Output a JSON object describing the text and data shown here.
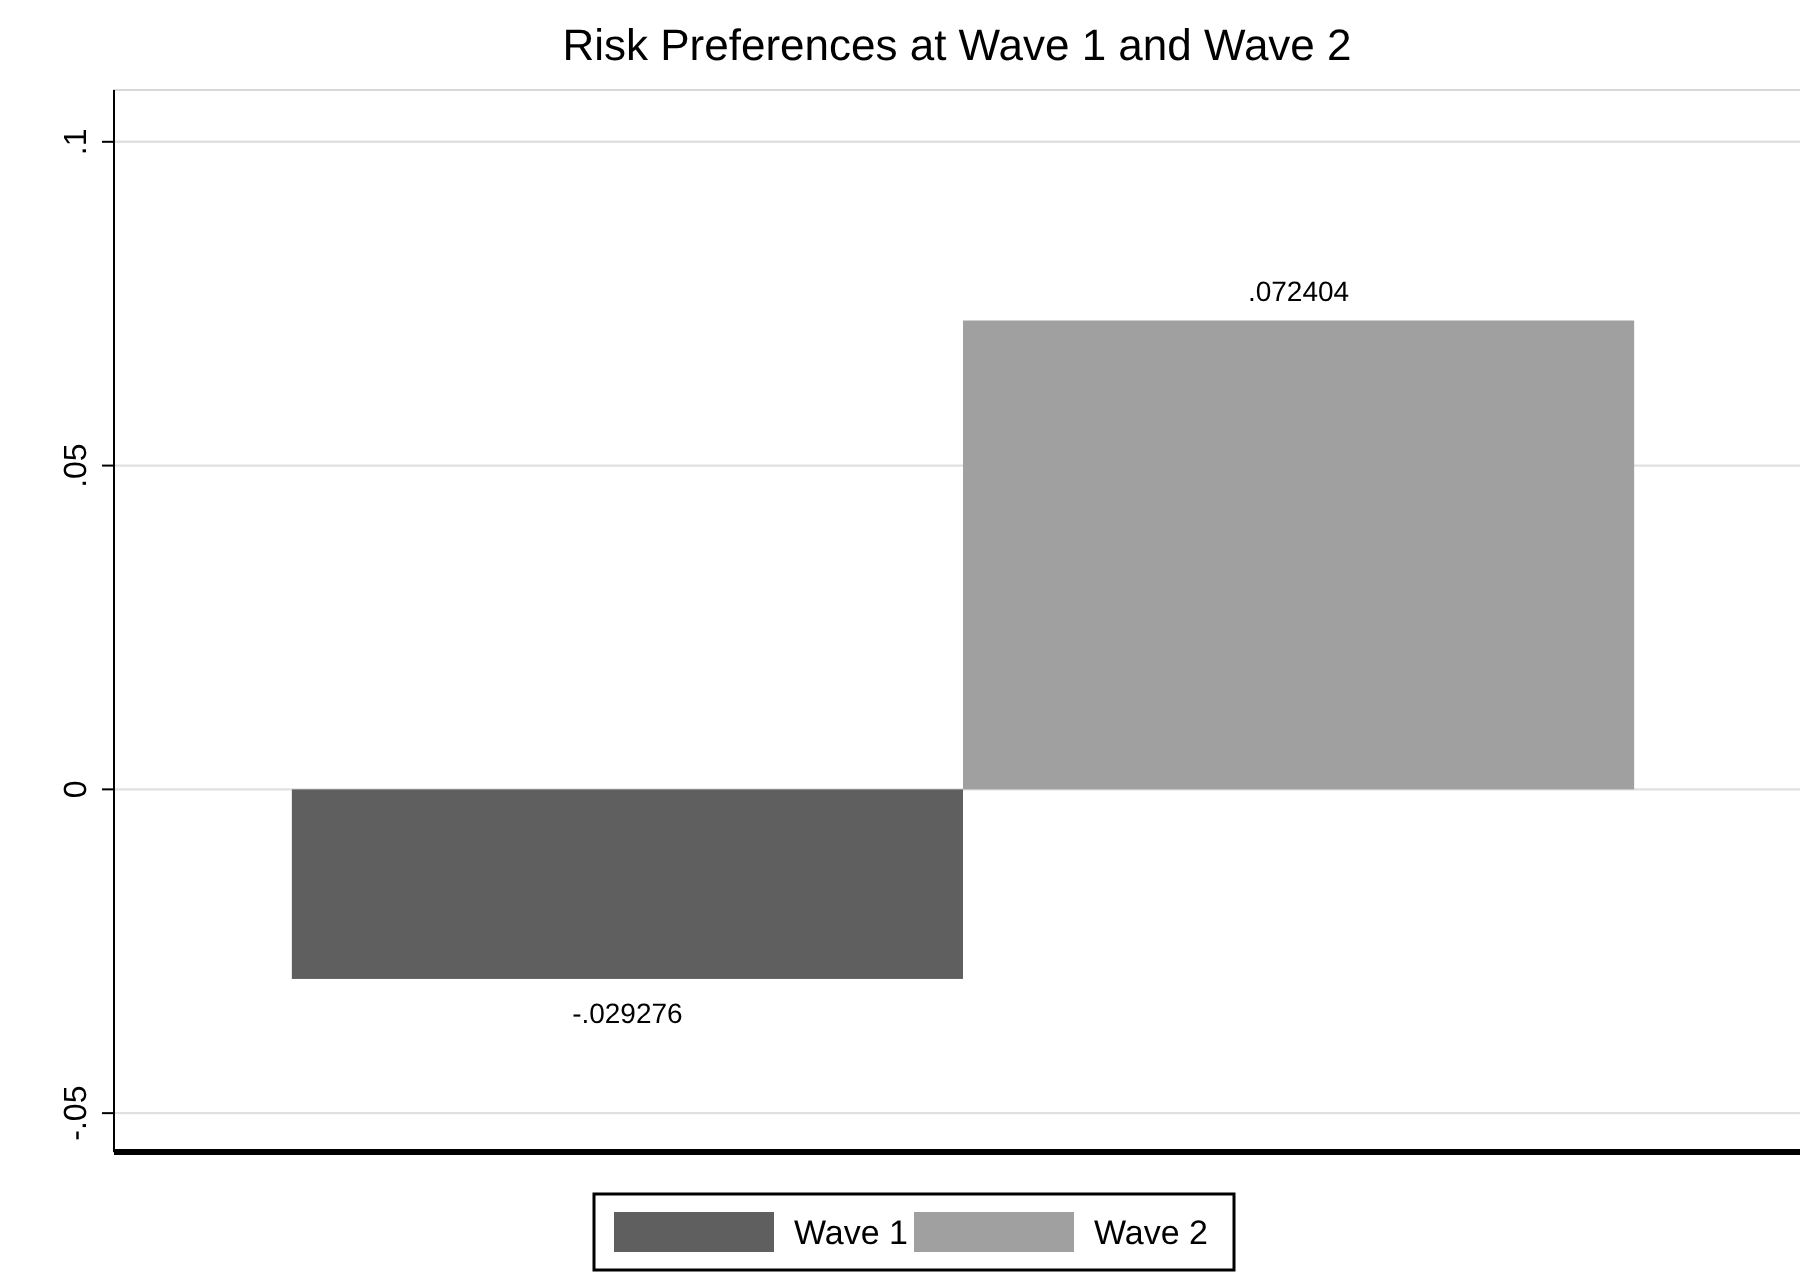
{
  "chart_data": {
    "type": "bar",
    "title": "Risk Preferences at Wave 1 and Wave 2",
    "categories": [
      null
    ],
    "series": [
      {
        "name": "Wave 1",
        "color": "#5f5f5f",
        "values": [
          -0.029276
        ],
        "value_labels": [
          "-.029276"
        ]
      },
      {
        "name": "Wave 2",
        "color": "#a0a0a0",
        "values": [
          0.072404
        ],
        "value_labels": [
          ".072404"
        ]
      }
    ],
    "ylim": [
      -0.056,
      0.108
    ],
    "yticks": [
      {
        "value": -0.05,
        "label": "-.05"
      },
      {
        "value": 0,
        "label": "0"
      },
      {
        "value": 0.05,
        "label": ".05"
      },
      {
        "value": 0.1,
        "label": ".1"
      }
    ],
    "grid": "y",
    "legend": "bottom"
  }
}
